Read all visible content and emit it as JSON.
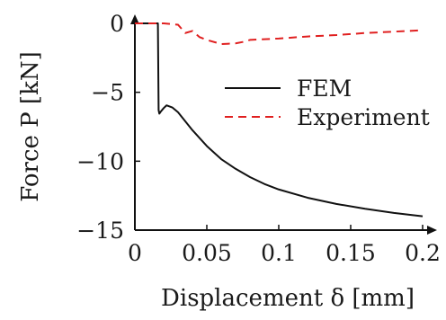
{
  "chart_data": {
    "type": "line",
    "xlabel": "Displacement δ [mm]",
    "ylabel": "Force P [kN]",
    "xlim": [
      0,
      0.2
    ],
    "ylim": [
      -15,
      0
    ],
    "x_ticks": [
      {
        "value": 0,
        "label": "0"
      },
      {
        "value": 0.05,
        "label": "0.05"
      },
      {
        "value": 0.1,
        "label": "0.1"
      },
      {
        "value": 0.15,
        "label": "0.15"
      },
      {
        "value": 0.2,
        "label": "0.2"
      }
    ],
    "y_ticks": [
      {
        "value": 0,
        "label": "0"
      },
      {
        "value": -5,
        "label": "−5"
      },
      {
        "value": -10,
        "label": "−10"
      },
      {
        "value": -15,
        "label": "−15"
      }
    ],
    "grid": false,
    "legend_position": "right",
    "series": [
      {
        "name": "FEM",
        "color": "#111111",
        "dash": "solid",
        "x": [
          0,
          0.016,
          0.0165,
          0.017,
          0.018,
          0.02,
          0.022,
          0.026,
          0.03,
          0.035,
          0.04,
          0.05,
          0.06,
          0.07,
          0.08,
          0.09,
          0.1,
          0.12,
          0.14,
          0.16,
          0.18,
          0.2
        ],
        "y": [
          0,
          0,
          -6.3,
          -6.55,
          -6.4,
          -6.15,
          -5.95,
          -6.1,
          -6.45,
          -7.1,
          -7.75,
          -8.9,
          -9.85,
          -10.55,
          -11.15,
          -11.65,
          -12.05,
          -12.65,
          -13.1,
          -13.45,
          -13.75,
          -14.0
        ]
      },
      {
        "name": "Experiment",
        "color": "#e02020",
        "dash": "dashed",
        "x": [
          0,
          0.02,
          0.03,
          0.035,
          0.04,
          0.045,
          0.05,
          0.06,
          0.07,
          0.075,
          0.08,
          0.1,
          0.12,
          0.14,
          0.16,
          0.18,
          0.2
        ],
        "y": [
          0,
          0,
          -0.1,
          -0.7,
          -0.55,
          -1.0,
          -1.2,
          -1.5,
          -1.45,
          -1.35,
          -1.2,
          -1.1,
          -0.95,
          -0.85,
          -0.7,
          -0.6,
          -0.5
        ]
      }
    ]
  }
}
